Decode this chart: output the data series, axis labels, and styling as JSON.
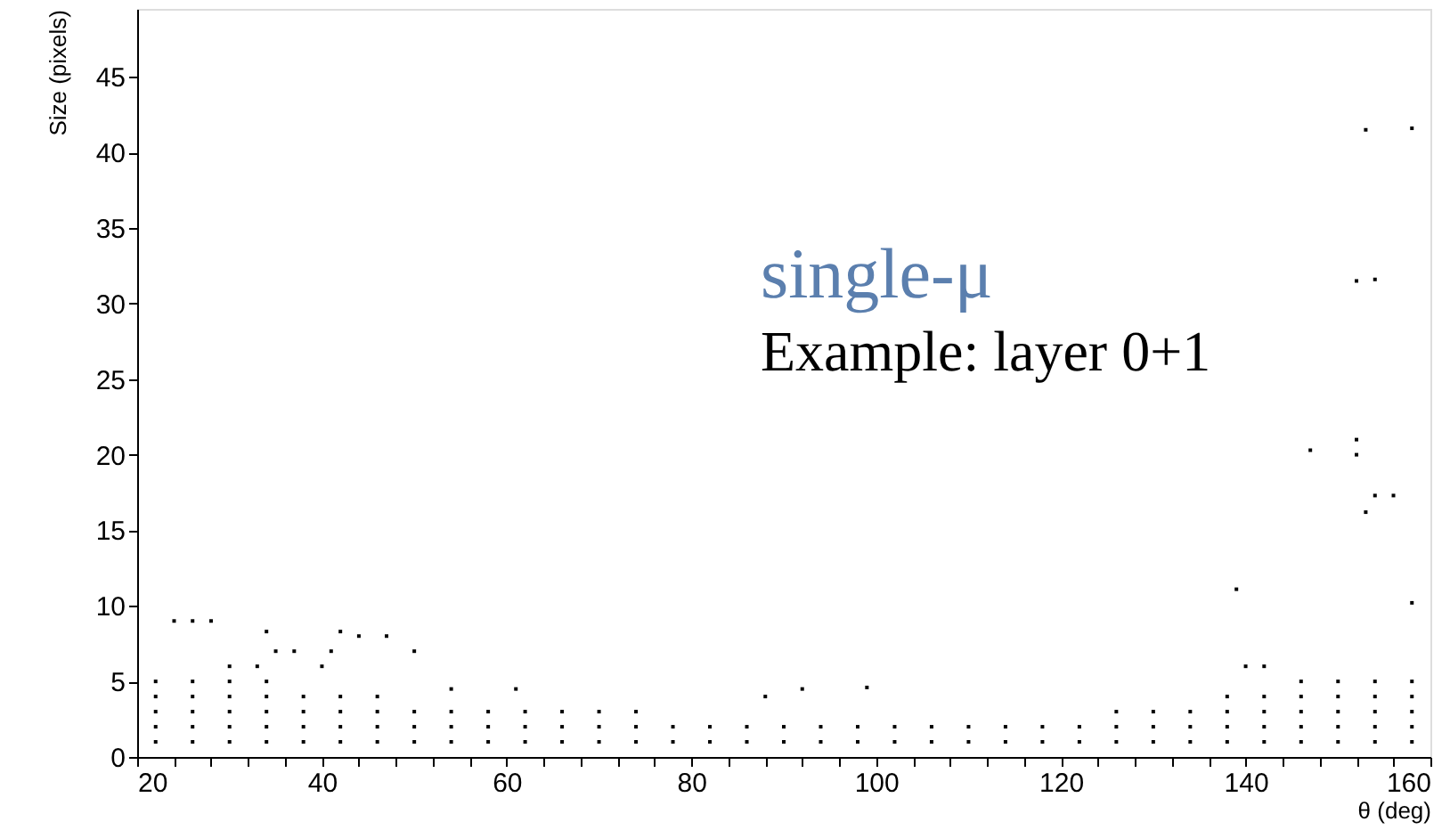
{
  "chart_data": {
    "type": "scatter",
    "xlabel": "θ (deg)",
    "ylabel": "Size (pixels)",
    "annotations": [
      "single-μ",
      "Example: layer 0+1"
    ],
    "x": [
      22,
      26,
      30,
      34,
      38,
      42,
      46,
      50,
      54,
      58,
      62,
      66,
      70,
      74,
      78,
      82,
      86,
      90,
      94,
      98,
      102,
      106,
      110,
      114,
      118,
      122,
      126,
      130,
      134,
      138,
      142,
      146,
      150,
      154,
      158,
      22,
      26,
      30,
      34,
      38,
      42,
      46,
      50,
      54,
      58,
      62,
      66,
      70,
      74,
      78,
      82,
      86,
      90,
      94,
      98,
      102,
      106,
      110,
      114,
      118,
      122,
      126,
      130,
      134,
      138,
      142,
      146,
      150,
      154,
      158,
      22,
      26,
      30,
      34,
      38,
      42,
      46,
      50,
      54,
      58,
      62,
      66,
      70,
      74,
      126,
      130,
      134,
      138,
      142,
      146,
      150,
      154,
      158,
      22,
      26,
      30,
      34,
      38,
      42,
      46,
      138,
      142,
      146,
      150,
      154,
      158,
      22,
      26,
      30,
      34,
      146,
      150,
      154,
      158,
      24,
      26,
      28,
      34,
      42,
      44,
      47,
      35,
      37,
      41,
      50,
      30,
      33,
      40,
      54,
      61,
      88,
      92,
      99,
      139,
      140,
      142,
      147,
      152,
      152,
      153,
      154,
      156,
      152,
      154,
      153,
      158,
      158
    ],
    "values": [
      1,
      1,
      1,
      1,
      1,
      1,
      1,
      1,
      1,
      1,
      1,
      1,
      1,
      1,
      1,
      1,
      1,
      1,
      1,
      1,
      1,
      1,
      1,
      1,
      1,
      1,
      1,
      1,
      1,
      1,
      1,
      1,
      1,
      1,
      1,
      2,
      2,
      2,
      2,
      2,
      2,
      2,
      2,
      2,
      2,
      2,
      2,
      2,
      2,
      2,
      2,
      2,
      2,
      2,
      2,
      2,
      2,
      2,
      2,
      2,
      2,
      2,
      2,
      2,
      2,
      2,
      2,
      2,
      2,
      2,
      3,
      3,
      3,
      3,
      3,
      3,
      3,
      3,
      3,
      3,
      3,
      3,
      3,
      3,
      3,
      3,
      3,
      3,
      3,
      3,
      3,
      3,
      3,
      4,
      4,
      4,
      4,
      4,
      4,
      4,
      4,
      4,
      4,
      4,
      4,
      4,
      5,
      5,
      5,
      5,
      5,
      5,
      5,
      5,
      9,
      9,
      9,
      8.3,
      8.3,
      8,
      8,
      7,
      7,
      7,
      7,
      6,
      6,
      6,
      4.5,
      4.5,
      4,
      4.5,
      4.6,
      11.1,
      6,
      6,
      20.3,
      21,
      20,
      16.2,
      17.3,
      17.3,
      31.5,
      31.6,
      41.5,
      41.6,
      10.2
    ],
    "color": "#000000",
    "marker": "square",
    "xlim": [
      20,
      160
    ],
    "xticks": [
      20,
      {
        "value": 24,
        "label": null
      },
      {
        "value": 28,
        "label": null
      },
      {
        "value": 32,
        "label": null
      },
      {
        "value": 36,
        "label": null
      },
      40,
      {
        "value": 44,
        "label": null
      },
      {
        "value": 48,
        "label": null
      },
      {
        "value": 52,
        "label": null
      },
      {
        "value": 56,
        "label": null
      },
      60,
      {
        "value": 64,
        "label": null
      },
      {
        "value": 68,
        "label": null
      },
      {
        "value": 72,
        "label": null
      },
      {
        "value": 76,
        "label": null
      },
      80,
      {
        "value": 84,
        "label": null
      },
      {
        "value": 88,
        "label": null
      },
      {
        "value": 92,
        "label": null
      },
      {
        "value": 96,
        "label": null
      },
      100,
      {
        "value": 104,
        "label": null
      },
      {
        "value": 108,
        "label": null
      },
      {
        "value": 112,
        "label": null
      },
      {
        "value": 116,
        "label": null
      },
      120,
      {
        "value": 124,
        "label": null
      },
      {
        "value": 128,
        "label": null
      },
      {
        "value": 132,
        "label": null
      },
      {
        "value": 136,
        "label": null
      },
      140,
      {
        "value": 144,
        "label": null
      },
      {
        "value": 148,
        "label": null
      },
      {
        "value": 152,
        "label": null
      },
      {
        "value": 156,
        "label": null
      },
      160
    ],
    "ylim": [
      0,
      49.5
    ],
    "yticks": [
      0,
      5,
      10,
      15,
      20,
      25,
      30,
      35,
      40,
      45
    ],
    "grid": false
  }
}
